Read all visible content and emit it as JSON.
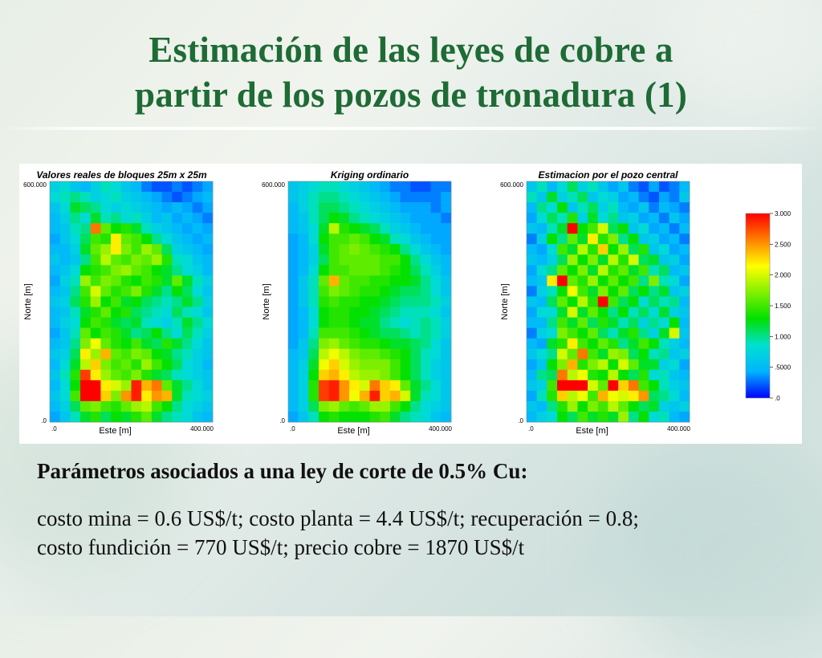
{
  "slide": {
    "title_line1": "Estimación de las leyes de cobre a",
    "title_line2": "partir de los pozos de tronadura (1)",
    "params_heading": "Parámetros asociados a una ley de corte de 0.5% Cu:",
    "params_line1": "costo mina = 0.6 US$/t; costo planta = 4.4 US$/t; recuperación = 0.8;",
    "params_line2": "costo fundición = 770 US$/t; precio cobre = 1870 US$/t"
  },
  "colors": {
    "title": "#1e6b35",
    "scale": [
      "#0000ff",
      "#00b4ff",
      "#00e0d0",
      "#00e000",
      "#80f000",
      "#ffff00",
      "#ff8000",
      "#ff0000"
    ]
  },
  "chart_data": [
    {
      "type": "heatmap",
      "title": "Valores reales de bloques 25m x 25m",
      "xlabel": "Este [m]",
      "ylabel": "Norte [m]",
      "x_ticks": [
        ".0",
        "400.000"
      ],
      "y_ticks": [
        ".0",
        "600.000"
      ],
      "xlim": [
        0,
        400
      ],
      "ylim": [
        0,
        600
      ],
      "cell_size_m": 25,
      "grid": [
        [
          0.7,
          0.8,
          0.6,
          0.5,
          0.7,
          0.9,
          0.8,
          0.6,
          0.5,
          0.3,
          0.2,
          0.2,
          0.3,
          0.2,
          0.3,
          0.4
        ],
        [
          0.8,
          0.9,
          1.0,
          0.9,
          0.7,
          0.8,
          0.9,
          0.7,
          0.6,
          0.5,
          0.4,
          0.3,
          0.2,
          0.3,
          0.4,
          0.5
        ],
        [
          0.6,
          0.8,
          1.2,
          1.1,
          1.0,
          0.8,
          0.7,
          0.8,
          0.7,
          0.6,
          0.5,
          0.4,
          0.5,
          0.4,
          0.3,
          0.4
        ],
        [
          0.5,
          0.7,
          1.0,
          0.8,
          1.2,
          0.9,
          1.0,
          0.8,
          0.9,
          0.7,
          0.5,
          0.6,
          0.4,
          0.5,
          0.4,
          0.3
        ],
        [
          0.5,
          0.6,
          0.9,
          1.0,
          2.6,
          1.6,
          1.3,
          1.4,
          1.2,
          0.9,
          0.7,
          0.6,
          0.5,
          0.4,
          0.5,
          0.4
        ],
        [
          0.4,
          0.6,
          0.8,
          1.1,
          1.5,
          1.4,
          2.2,
          1.6,
          1.5,
          1.3,
          1.0,
          0.8,
          0.6,
          0.5,
          0.4,
          0.5
        ],
        [
          0.5,
          0.5,
          0.7,
          1.2,
          1.6,
          1.8,
          2.2,
          1.7,
          1.5,
          1.8,
          1.6,
          1.1,
          0.7,
          0.6,
          0.5,
          0.4
        ],
        [
          0.6,
          0.5,
          0.6,
          1.0,
          1.5,
          1.9,
          1.6,
          1.5,
          1.7,
          1.6,
          1.8,
          1.4,
          0.9,
          0.8,
          0.6,
          0.5
        ],
        [
          0.5,
          0.6,
          0.8,
          1.3,
          1.4,
          1.5,
          1.7,
          1.8,
          1.6,
          1.5,
          1.3,
          1.2,
          1.0,
          0.8,
          0.7,
          0.5
        ],
        [
          0.4,
          0.7,
          0.9,
          1.8,
          1.5,
          1.7,
          1.6,
          1.4,
          1.3,
          1.5,
          1.4,
          1.2,
          1.6,
          1.2,
          0.9,
          0.7
        ],
        [
          0.5,
          0.6,
          1.0,
          1.5,
          2.0,
          1.6,
          1.4,
          1.5,
          1.7,
          1.4,
          1.2,
          1.0,
          1.3,
          1.1,
          0.8,
          0.6
        ],
        [
          0.6,
          0.7,
          1.1,
          1.4,
          1.8,
          1.3,
          1.5,
          1.2,
          1.3,
          1.1,
          1.0,
          0.9,
          1.0,
          1.2,
          1.0,
          0.7
        ],
        [
          0.5,
          0.6,
          0.9,
          1.2,
          1.4,
          1.6,
          1.3,
          1.4,
          1.1,
          1.0,
          0.9,
          0.8,
          1.1,
          0.9,
          0.8,
          0.6
        ],
        [
          0.5,
          0.7,
          0.8,
          1.3,
          1.5,
          1.4,
          1.2,
          1.1,
          1.2,
          0.9,
          0.8,
          0.7,
          0.9,
          1.2,
          1.0,
          0.8
        ],
        [
          0.4,
          0.6,
          0.9,
          1.6,
          1.3,
          1.5,
          1.4,
          1.2,
          1.0,
          1.1,
          1.3,
          1.0,
          0.8,
          1.1,
          0.9,
          0.7
        ],
        [
          0.5,
          0.6,
          1.0,
          1.7,
          2.1,
          1.6,
          1.4,
          1.3,
          1.5,
          1.2,
          1.1,
          1.4,
          1.2,
          1.0,
          0.8,
          0.6
        ],
        [
          0.6,
          0.7,
          1.1,
          2.2,
          1.8,
          2.4,
          1.6,
          1.5,
          1.7,
          1.6,
          1.3,
          1.2,
          1.0,
          0.9,
          0.7,
          0.6
        ],
        [
          0.5,
          0.8,
          1.2,
          1.9,
          2.3,
          1.7,
          1.5,
          1.6,
          1.4,
          1.8,
          1.5,
          1.3,
          1.1,
          0.8,
          0.7,
          0.5
        ],
        [
          0.6,
          0.9,
          1.4,
          2.8,
          2.2,
          1.8,
          1.6,
          1.5,
          1.7,
          1.4,
          1.2,
          1.1,
          0.9,
          0.8,
          0.7,
          0.6
        ],
        [
          0.5,
          0.8,
          1.3,
          3.0,
          3.0,
          2.2,
          2.0,
          1.8,
          2.9,
          2.4,
          2.6,
          1.6,
          1.2,
          1.0,
          0.8,
          0.6
        ],
        [
          0.6,
          0.8,
          1.5,
          3.0,
          3.0,
          2.3,
          1.7,
          2.5,
          2.9,
          2.2,
          2.5,
          2.4,
          1.2,
          0.9,
          0.8,
          0.7
        ],
        [
          0.5,
          0.7,
          1.1,
          1.6,
          1.7,
          1.5,
          1.4,
          1.6,
          1.8,
          1.9,
          1.5,
          1.3,
          1.0,
          0.8,
          0.7,
          0.6
        ],
        [
          0.4,
          0.6,
          0.9,
          1.2,
          1.4,
          1.1,
          1.3,
          1.2,
          1.4,
          1.6,
          1.2,
          1.0,
          0.9,
          0.8,
          0.6,
          0.5
        ]
      ]
    },
    {
      "type": "heatmap",
      "title": "Kriging ordinario",
      "xlabel": "Este [m]",
      "ylabel": "Norte [m]",
      "x_ticks": [
        ".0",
        "400.000"
      ],
      "y_ticks": [
        ".0",
        "600.000"
      ],
      "xlim": [
        0,
        400
      ],
      "ylim": [
        0,
        600
      ],
      "cell_size_m": 25,
      "grid": [
        [
          0.6,
          0.7,
          0.8,
          0.9,
          0.9,
          0.8,
          0.7,
          0.6,
          0.5,
          0.4,
          0.3,
          0.3,
          0.2,
          0.2,
          0.3,
          0.3
        ],
        [
          0.6,
          0.7,
          0.9,
          1.0,
          1.0,
          0.9,
          0.8,
          0.7,
          0.6,
          0.5,
          0.4,
          0.3,
          0.3,
          0.3,
          0.3,
          0.4
        ],
        [
          0.5,
          0.7,
          0.9,
          1.1,
          1.1,
          1.0,
          0.9,
          0.8,
          0.7,
          0.6,
          0.5,
          0.4,
          0.4,
          0.4,
          0.3,
          0.4
        ],
        [
          0.5,
          0.6,
          0.9,
          1.1,
          1.3,
          1.2,
          1.0,
          0.9,
          0.8,
          0.7,
          0.6,
          0.5,
          0.4,
          0.4,
          0.4,
          0.3
        ],
        [
          0.5,
          0.6,
          0.8,
          1.2,
          1.9,
          1.4,
          1.3,
          1.2,
          1.1,
          0.9,
          0.7,
          0.6,
          0.5,
          0.4,
          0.4,
          0.4
        ],
        [
          0.4,
          0.5,
          0.8,
          1.3,
          1.5,
          1.5,
          1.6,
          1.5,
          1.3,
          1.2,
          0.9,
          0.8,
          0.6,
          0.5,
          0.4,
          0.4
        ],
        [
          0.4,
          0.5,
          0.7,
          1.2,
          1.5,
          1.6,
          1.7,
          1.6,
          1.5,
          1.4,
          1.3,
          1.0,
          0.8,
          0.6,
          0.5,
          0.4
        ],
        [
          0.4,
          0.5,
          0.7,
          1.1,
          1.5,
          1.6,
          1.6,
          1.6,
          1.6,
          1.5,
          1.5,
          1.3,
          1.0,
          0.8,
          0.6,
          0.5
        ],
        [
          0.4,
          0.5,
          0.8,
          1.3,
          1.5,
          1.5,
          1.6,
          1.6,
          1.6,
          1.5,
          1.4,
          1.3,
          1.1,
          0.9,
          0.7,
          0.5
        ],
        [
          0.4,
          0.6,
          0.9,
          1.6,
          2.4,
          1.6,
          1.5,
          1.5,
          1.4,
          1.4,
          1.3,
          1.3,
          1.2,
          1.0,
          0.8,
          0.6
        ],
        [
          0.4,
          0.6,
          0.9,
          1.5,
          1.7,
          1.6,
          1.5,
          1.4,
          1.4,
          1.3,
          1.2,
          1.1,
          1.1,
          1.0,
          0.8,
          0.6
        ],
        [
          0.4,
          0.6,
          0.9,
          1.4,
          1.5,
          1.4,
          1.4,
          1.3,
          1.3,
          1.2,
          1.1,
          1.0,
          1.0,
          1.0,
          0.9,
          0.7
        ],
        [
          0.4,
          0.5,
          0.8,
          1.3,
          1.4,
          1.4,
          1.3,
          1.3,
          1.2,
          1.1,
          1.0,
          0.9,
          0.9,
          0.9,
          0.8,
          0.6
        ],
        [
          0.4,
          0.5,
          0.8,
          1.3,
          1.4,
          1.4,
          1.3,
          1.2,
          1.2,
          1.0,
          0.9,
          0.8,
          0.9,
          1.0,
          0.9,
          0.7
        ],
        [
          0.4,
          0.5,
          0.9,
          1.5,
          1.5,
          1.5,
          1.4,
          1.3,
          1.2,
          1.1,
          1.1,
          1.0,
          0.9,
          1.0,
          0.9,
          0.7
        ],
        [
          0.4,
          0.6,
          1.0,
          1.7,
          1.8,
          1.6,
          1.5,
          1.4,
          1.4,
          1.3,
          1.2,
          1.2,
          1.1,
          1.0,
          0.8,
          0.6
        ],
        [
          0.5,
          0.6,
          1.1,
          1.9,
          2.1,
          1.9,
          1.7,
          1.6,
          1.6,
          1.5,
          1.4,
          1.3,
          1.1,
          0.9,
          0.8,
          0.6
        ],
        [
          0.5,
          0.7,
          1.2,
          2.1,
          2.3,
          2.0,
          1.8,
          1.7,
          1.7,
          1.7,
          1.5,
          1.3,
          1.1,
          0.9,
          0.7,
          0.6
        ],
        [
          0.5,
          0.7,
          1.3,
          2.3,
          2.4,
          2.2,
          1.9,
          1.8,
          1.8,
          1.7,
          1.5,
          1.3,
          1.1,
          0.9,
          0.7,
          0.6
        ],
        [
          0.5,
          0.7,
          1.4,
          2.8,
          2.9,
          2.5,
          2.2,
          2.0,
          2.6,
          2.3,
          2.2,
          1.6,
          1.2,
          1.0,
          0.8,
          0.6
        ],
        [
          0.5,
          0.7,
          1.4,
          2.8,
          2.9,
          2.5,
          2.1,
          2.4,
          2.9,
          2.3,
          2.4,
          2.0,
          1.2,
          0.9,
          0.8,
          0.6
        ],
        [
          0.5,
          0.7,
          1.1,
          1.7,
          1.8,
          1.6,
          1.5,
          1.6,
          1.8,
          1.8,
          1.5,
          1.3,
          1.0,
          0.8,
          0.7,
          0.6
        ],
        [
          0.4,
          0.6,
          0.9,
          1.3,
          1.4,
          1.3,
          1.3,
          1.3,
          1.4,
          1.5,
          1.2,
          1.0,
          0.9,
          0.8,
          0.6,
          0.5
        ]
      ]
    },
    {
      "type": "heatmap",
      "title": "Estimacion por el pozo central",
      "xlabel": "Este [m]",
      "ylabel": "Norte [m]",
      "x_ticks": [
        ".0",
        "400.000"
      ],
      "y_ticks": [
        ".0",
        "600.000"
      ],
      "xlim": [
        0,
        400
      ],
      "ylim": [
        0,
        600
      ],
      "cell_size_m": 25,
      "grid": [
        [
          0.6,
          0.9,
          0.5,
          0.8,
          1.1,
          0.7,
          0.9,
          0.6,
          0.4,
          0.6,
          0.3,
          0.2,
          0.4,
          0.2,
          0.3,
          0.5
        ],
        [
          0.9,
          0.6,
          1.2,
          0.7,
          0.9,
          1.1,
          0.6,
          0.8,
          0.7,
          0.4,
          0.5,
          0.3,
          0.2,
          0.4,
          0.3,
          0.6
        ],
        [
          0.5,
          1.0,
          0.8,
          1.3,
          0.6,
          0.9,
          1.1,
          0.7,
          0.9,
          0.5,
          0.4,
          0.6,
          0.3,
          0.5,
          0.4,
          0.3
        ],
        [
          0.4,
          0.8,
          1.1,
          0.9,
          1.4,
          0.7,
          1.2,
          0.8,
          1.0,
          0.6,
          0.7,
          0.4,
          0.5,
          0.3,
          0.6,
          0.4
        ],
        [
          0.6,
          0.5,
          0.9,
          1.2,
          3.0,
          1.3,
          1.5,
          2.0,
          1.1,
          1.3,
          0.6,
          0.8,
          0.4,
          0.5,
          0.3,
          0.5
        ],
        [
          0.3,
          0.7,
          1.3,
          1.0,
          1.6,
          1.2,
          2.2,
          1.4,
          1.7,
          1.0,
          1.3,
          0.6,
          0.7,
          0.4,
          0.5,
          0.3
        ],
        [
          0.5,
          0.4,
          0.8,
          1.5,
          1.2,
          1.9,
          1.4,
          2.3,
          1.3,
          1.8,
          1.1,
          1.4,
          0.6,
          0.8,
          0.4,
          0.5
        ],
        [
          0.6,
          0.5,
          0.7,
          1.1,
          1.8,
          1.3,
          1.7,
          1.2,
          1.9,
          1.4,
          2.0,
          1.1,
          1.2,
          0.6,
          0.7,
          0.4
        ],
        [
          0.4,
          0.8,
          1.0,
          1.6,
          1.3,
          1.7,
          1.2,
          1.9,
          1.4,
          1.6,
          1.2,
          1.5,
          0.9,
          1.1,
          0.5,
          0.6
        ],
        [
          0.5,
          0.6,
          2.2,
          3.0,
          1.6,
          1.4,
          1.8,
          1.3,
          1.6,
          1.3,
          1.5,
          1.0,
          1.7,
          0.9,
          0.8,
          0.4
        ],
        [
          0.3,
          0.7,
          0.9,
          1.3,
          2.1,
          1.5,
          1.2,
          1.7,
          1.3,
          1.6,
          1.1,
          1.3,
          1.0,
          1.2,
          0.6,
          0.7
        ],
        [
          0.6,
          0.5,
          1.1,
          1.6,
          1.3,
          1.9,
          1.4,
          3.0,
          1.5,
          1.1,
          1.3,
          0.8,
          1.1,
          0.9,
          1.0,
          0.5
        ],
        [
          0.4,
          0.8,
          0.8,
          1.2,
          2.0,
          1.2,
          1.6,
          1.3,
          1.0,
          1.3,
          0.9,
          1.1,
          0.8,
          1.2,
          0.7,
          0.6
        ],
        [
          0.5,
          0.5,
          1.0,
          1.5,
          1.2,
          1.6,
          1.1,
          1.4,
          1.2,
          0.9,
          1.1,
          0.7,
          1.0,
          0.8,
          1.3,
          0.5
        ],
        [
          0.3,
          0.7,
          0.8,
          1.7,
          1.5,
          1.3,
          1.6,
          1.1,
          0.9,
          1.2,
          1.4,
          1.0,
          0.7,
          1.2,
          2.0,
          0.6
        ],
        [
          0.5,
          0.4,
          1.2,
          1.4,
          2.2,
          1.5,
          1.3,
          1.6,
          1.4,
          1.0,
          1.2,
          1.5,
          1.3,
          0.9,
          0.7,
          0.5
        ],
        [
          0.6,
          0.8,
          1.0,
          2.0,
          1.6,
          2.6,
          1.5,
          1.2,
          1.8,
          1.7,
          1.1,
          1.3,
          0.9,
          1.0,
          0.6,
          0.7
        ],
        [
          0.4,
          0.6,
          1.3,
          1.7,
          2.4,
          1.4,
          1.7,
          1.9,
          1.3,
          2.0,
          1.6,
          1.2,
          1.2,
          0.7,
          0.8,
          0.4
        ],
        [
          0.5,
          1.0,
          1.1,
          2.6,
          1.9,
          2.1,
          1.4,
          1.3,
          1.9,
          1.3,
          1.1,
          1.4,
          0.8,
          0.9,
          0.6,
          0.5
        ],
        [
          0.6,
          0.7,
          1.5,
          3.0,
          3.0,
          3.0,
          2.0,
          1.6,
          3.0,
          2.3,
          2.6,
          1.5,
          1.3,
          0.9,
          0.7,
          0.6
        ],
        [
          0.4,
          0.9,
          1.4,
          2.3,
          1.9,
          2.1,
          1.5,
          2.4,
          2.1,
          2.0,
          2.2,
          2.5,
          1.1,
          1.0,
          0.8,
          0.5
        ],
        [
          0.6,
          0.5,
          1.0,
          1.4,
          1.8,
          1.3,
          1.7,
          1.5,
          1.9,
          1.6,
          1.3,
          1.1,
          1.2,
          0.7,
          0.6,
          0.7
        ],
        [
          0.5,
          0.7,
          0.8,
          1.3,
          1.1,
          1.5,
          1.2,
          1.4,
          1.2,
          1.8,
          1.0,
          1.3,
          0.8,
          0.9,
          0.5,
          0.4
        ]
      ]
    }
  ],
  "legend": {
    "min": 0,
    "max": 3,
    "labels": [
      ".0",
      ".5000",
      "1.000",
      "1.500",
      "2.000",
      "2.500",
      "3.000"
    ]
  }
}
